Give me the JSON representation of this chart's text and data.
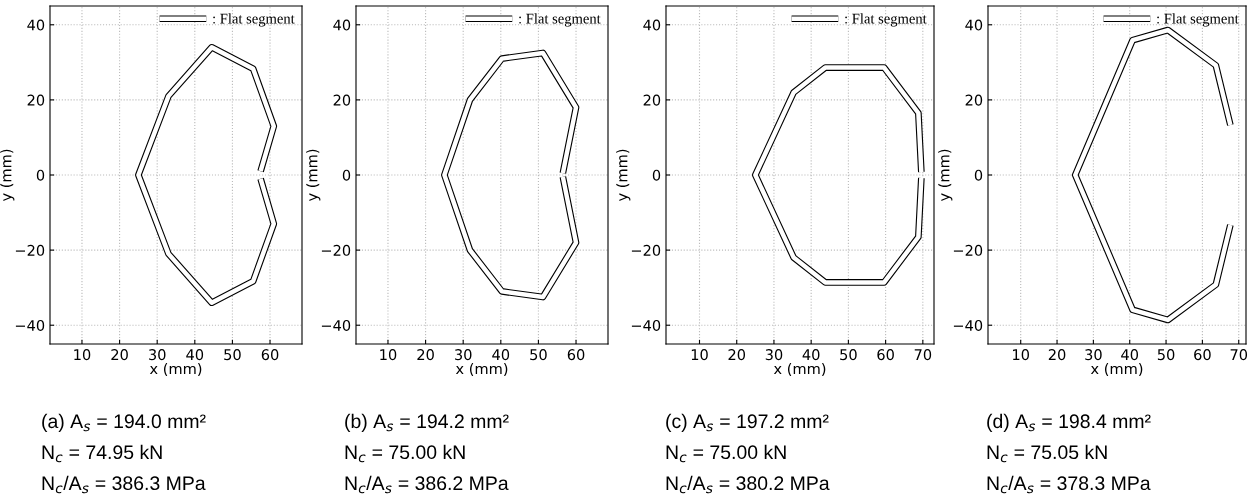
{
  "chart_data": [
    {
      "type": "line",
      "xlabel": "x (mm)",
      "ylabel": "y (mm)",
      "xlim": [
        1.5,
        68.5
      ],
      "ylim": [
        -45,
        45
      ],
      "xticks": [
        10,
        20,
        30,
        40,
        50,
        60
      ],
      "yticks": [
        -40,
        -20,
        0,
        20,
        40
      ],
      "grid": true,
      "legend": "top right",
      "line_style": "solid",
      "series": [
        {
          "name": ": Flat segment",
          "color": "#ffffff",
          "x": [
            57.5,
            61,
            55.5,
            44.5,
            33,
            25,
            33,
            44.5,
            55.5,
            61,
            57.5
          ],
          "values": [
            1,
            13,
            28.3,
            34,
            21,
            0,
            -21,
            -34,
            -28.3,
            -13,
            -1
          ]
        }
      ],
      "annotations": [
        "(a) A$_{s}$ = 194.0 mm²",
        "N$_{c}$ = 74.95 kN",
        "N$_{c}$/A$_{s}$ = 386.3 MPa"
      ]
    },
    {
      "type": "line",
      "xlabel": "x (mm)",
      "ylabel": "y (mm)",
      "xlim": [
        1.5,
        68.5
      ],
      "ylim": [
        -45,
        45
      ],
      "xticks": [
        10,
        20,
        30,
        40,
        50,
        60
      ],
      "yticks": [
        -40,
        -20,
        0,
        20,
        40
      ],
      "grid": true,
      "legend": "top right",
      "line_style": "solid",
      "series": [
        {
          "name": ": Flat segment",
          "color": "#ffffff",
          "x": [
            56.5,
            60,
            51.2,
            40.3,
            31.8,
            25,
            31.8,
            40.3,
            51.2,
            60,
            56.5
          ],
          "values": [
            0.5,
            18,
            32.5,
            31,
            20,
            0,
            -20,
            -31,
            -32.5,
            -18,
            -0.5
          ]
        }
      ],
      "annotations": [
        "(b) A$_{s}$ = 194.2 mm²",
        "N$_{c}$ = 75.00 kN",
        "N$_{c}$/A$_{s}$ = 386.2 MPa"
      ]
    },
    {
      "type": "line",
      "xlabel": "x (mm)",
      "ylabel": "y (mm)",
      "xlim": [
        1,
        73
      ],
      "ylim": [
        -45,
        45
      ],
      "xticks": [
        10,
        20,
        30,
        40,
        50,
        60,
        70
      ],
      "yticks": [
        -40,
        -20,
        0,
        20,
        40
      ],
      "grid": true,
      "legend": "top right",
      "line_style": "solid",
      "series": [
        {
          "name": ": Flat segment",
          "color": "#ffffff",
          "x": [
            69.6,
            68.8,
            59.6,
            43.8,
            35.3,
            25,
            35.3,
            43.8,
            59.6,
            68.8,
            69.6
          ],
          "values": [
            0.8,
            16.5,
            28.6,
            28.6,
            22,
            0,
            -22,
            -28.6,
            -28.6,
            -16.5,
            -0.8
          ]
        }
      ],
      "annotations": [
        "(c) A$_{s}$ = 197.2 mm²",
        "N$_{c}$ = 75.00 kN",
        "N$_{c}$/A$_{s}$ = 380.2 MPa"
      ]
    },
    {
      "type": "line",
      "xlabel": "x (mm)",
      "ylabel": "y (mm)",
      "xlim": [
        1,
        72
      ],
      "ylim": [
        -45,
        45
      ],
      "xticks": [
        10,
        20,
        30,
        40,
        50,
        60,
        70
      ],
      "yticks": [
        -40,
        -20,
        0,
        20,
        40
      ],
      "grid": true,
      "legend": "top right",
      "line_style": "solid",
      "series": [
        {
          "name": ": Flat segment",
          "color": "#ffffff",
          "x": [
            67.7,
            63.7,
            50.5,
            40.8,
            25,
            40.8,
            50.5,
            63.7,
            67.7
          ],
          "values": [
            13.3,
            29.2,
            38.6,
            35.9,
            0,
            -35.9,
            -38.6,
            -29.2,
            -13.3
          ]
        }
      ],
      "annotations": [
        "(d) A$_{s}$ = 198.4 mm²",
        "N$_{c}$ = 75.05 kN",
        "N$_{c}$/A$_{s}$ = 378.3 MPa"
      ]
    }
  ]
}
